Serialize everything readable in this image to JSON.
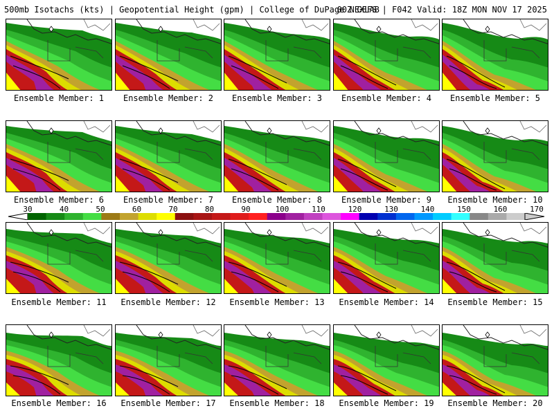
{
  "header": {
    "title": "500mb Isotachs (kts) | Geopotential Height (gpm) | College of DuPage NEXLAB",
    "valid": "00Z GEFS | F042 Valid: 18Z MON NOV 17 2025"
  },
  "colorbar": {
    "labels": [
      "30",
      "40",
      "50",
      "60",
      "70",
      "80",
      "90",
      "100",
      "110",
      "120",
      "130",
      "140",
      "150",
      "160",
      "170"
    ],
    "colors": [
      "#006400",
      "#168a16",
      "#2fb32f",
      "#44dd44",
      "#9c7a16",
      "#c2a32e",
      "#dddd00",
      "#ffff00",
      "#8b1010",
      "#a81414",
      "#c41818",
      "#df1c1c",
      "#ff2020",
      "#8b008b",
      "#a020a0",
      "#c040c0",
      "#dd55dd",
      "#ff00ff",
      "#0000b0",
      "#0030d0",
      "#0066ee",
      "#0099ff",
      "#00ccff",
      "#33ffff",
      "#888888",
      "#aaaaaa",
      "#cccccc"
    ]
  },
  "members": [
    {
      "label": "Ensemble Member: 1"
    },
    {
      "label": "Ensemble Member: 2"
    },
    {
      "label": "Ensemble Member: 3"
    },
    {
      "label": "Ensemble Member: 4"
    },
    {
      "label": "Ensemble Member: 5"
    },
    {
      "label": "Ensemble Member: 6"
    },
    {
      "label": "Ensemble Member: 7"
    },
    {
      "label": "Ensemble Member: 8"
    },
    {
      "label": "Ensemble Member: 9"
    },
    {
      "label": "Ensemble Member: 10"
    },
    {
      "label": "Ensemble Member: 11"
    },
    {
      "label": "Ensemble Member: 12"
    },
    {
      "label": "Ensemble Member: 13"
    },
    {
      "label": "Ensemble Member: 14"
    },
    {
      "label": "Ensemble Member: 15"
    },
    {
      "label": "Ensemble Member: 16"
    },
    {
      "label": "Ensemble Member: 17"
    },
    {
      "label": "Ensemble Member: 18"
    },
    {
      "label": "Ensemble Member: 19"
    },
    {
      "label": "Ensemble Member: 20"
    }
  ]
}
